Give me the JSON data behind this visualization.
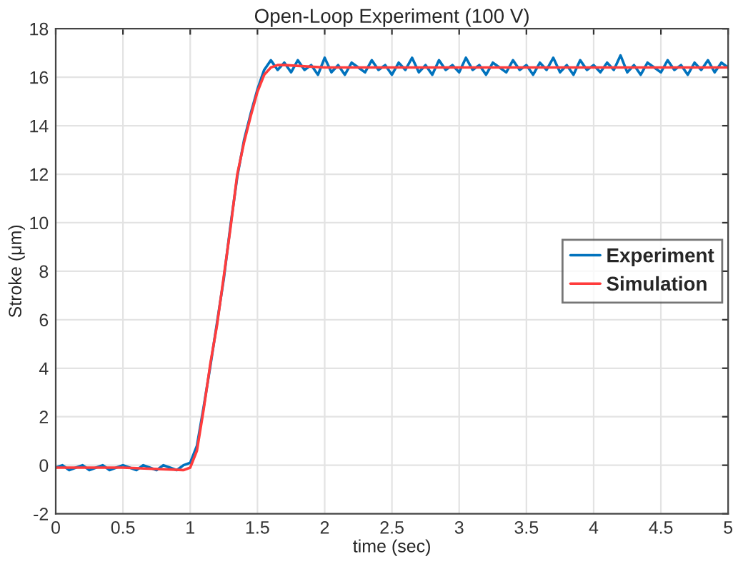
{
  "chart_data": {
    "type": "line",
    "title": "Open-Loop Experiment (100 V)",
    "xlabel": "time (sec)",
    "ylabel": "Stroke (μm)",
    "xlim": [
      0,
      5
    ],
    "xticks": [
      0,
      0.5,
      1,
      1.5,
      2,
      2.5,
      3,
      3.5,
      4,
      4.5,
      5
    ],
    "ylim": [
      -2,
      18
    ],
    "yticks": [
      -2,
      0,
      2,
      4,
      6,
      8,
      10,
      12,
      14,
      16,
      18
    ],
    "grid": true,
    "legend": "right",
    "line_style": "solid",
    "marker": "none",
    "series": [
      {
        "name": "Experiment",
        "color": "#0072bd",
        "x": [
          0,
          0.05,
          0.1,
          0.15,
          0.2,
          0.25,
          0.3,
          0.35,
          0.4,
          0.45,
          0.5,
          0.55,
          0.6,
          0.65,
          0.7,
          0.75,
          0.8,
          0.85,
          0.9,
          0.95,
          1.0,
          1.05,
          1.1,
          1.15,
          1.2,
          1.25,
          1.3,
          1.35,
          1.4,
          1.45,
          1.5,
          1.55,
          1.6,
          1.65,
          1.7,
          1.75,
          1.8,
          1.85,
          1.9,
          1.95,
          2.0,
          2.05,
          2.1,
          2.15,
          2.2,
          2.25,
          2.3,
          2.35,
          2.4,
          2.45,
          2.5,
          2.55,
          2.6,
          2.65,
          2.7,
          2.75,
          2.8,
          2.85,
          2.9,
          2.95,
          3.0,
          3.05,
          3.1,
          3.15,
          3.2,
          3.25,
          3.3,
          3.35,
          3.4,
          3.45,
          3.5,
          3.55,
          3.6,
          3.65,
          3.7,
          3.75,
          3.8,
          3.85,
          3.9,
          3.95,
          4.0,
          4.05,
          4.1,
          4.15,
          4.2,
          4.25,
          4.3,
          4.35,
          4.4,
          4.45,
          4.5,
          4.55,
          4.6,
          4.65,
          4.7,
          4.75,
          4.8,
          4.85,
          4.9,
          4.95,
          5.0
        ],
        "values": [
          -0.1,
          0.0,
          -0.2,
          -0.1,
          0.0,
          -0.2,
          -0.1,
          0.0,
          -0.2,
          -0.1,
          0.0,
          -0.1,
          -0.2,
          0.0,
          -0.1,
          -0.2,
          0.0,
          -0.1,
          -0.2,
          0.0,
          0.1,
          0.8,
          2.4,
          4.1,
          5.9,
          7.7,
          9.9,
          11.9,
          13.4,
          14.5,
          15.5,
          16.3,
          16.7,
          16.3,
          16.6,
          16.2,
          16.7,
          16.3,
          16.5,
          16.1,
          16.8,
          16.2,
          16.5,
          16.1,
          16.6,
          16.4,
          16.2,
          16.7,
          16.3,
          16.5,
          16.1,
          16.6,
          16.3,
          16.8,
          16.2,
          16.5,
          16.1,
          16.7,
          16.3,
          16.5,
          16.2,
          16.8,
          16.3,
          16.5,
          16.1,
          16.6,
          16.4,
          16.2,
          16.7,
          16.3,
          16.5,
          16.1,
          16.6,
          16.3,
          16.8,
          16.2,
          16.5,
          16.1,
          16.7,
          16.3,
          16.5,
          16.2,
          16.6,
          16.3,
          16.9,
          16.2,
          16.5,
          16.1,
          16.6,
          16.4,
          16.2,
          16.7,
          16.3,
          16.5,
          16.1,
          16.6,
          16.3,
          16.7,
          16.2,
          16.6,
          16.4
        ]
      },
      {
        "name": "Simulation",
        "color": "#ff3c3c",
        "x": [
          0,
          0.5,
          0.95,
          1.0,
          1.05,
          1.1,
          1.15,
          1.2,
          1.25,
          1.3,
          1.35,
          1.4,
          1.45,
          1.5,
          1.55,
          1.6,
          1.65,
          1.7,
          2.0,
          2.5,
          3,
          3.5,
          4,
          4.5,
          5
        ],
        "values": [
          -0.1,
          -0.1,
          -0.2,
          -0.1,
          0.6,
          2.3,
          4.2,
          5.8,
          7.8,
          9.8,
          12.0,
          13.3,
          14.4,
          15.4,
          16.1,
          16.4,
          16.5,
          16.5,
          16.4,
          16.4,
          16.4,
          16.4,
          16.4,
          16.4,
          16.4
        ]
      }
    ]
  }
}
